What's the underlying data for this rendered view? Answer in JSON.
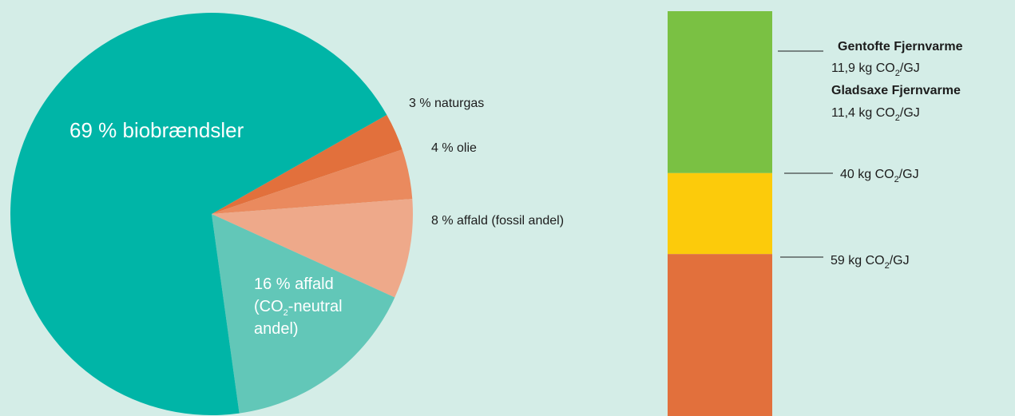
{
  "chart_data": [
    {
      "type": "pie",
      "slices": [
        {
          "label": "69 % biobrændsler",
          "value": 69,
          "color": "#00b5a7"
        },
        {
          "label": "3 % naturgas",
          "value": 3,
          "color": "#e2703c"
        },
        {
          "label": "4 % olie",
          "value": 4,
          "color": "#ea8a5e"
        },
        {
          "label": "8 % affald (fossil andel)",
          "value": 8,
          "color": "#eea98a"
        },
        {
          "label_parts": [
            "16 % affald",
            "(CO",
            "2",
            "-neutral",
            "andel)"
          ],
          "value": 16,
          "color": "#62c7b8"
        }
      ]
    },
    {
      "type": "bar",
      "stacked": true,
      "segments": [
        {
          "color": "#7ac143",
          "range_top": 0.0,
          "range_bottom": 0.4
        },
        {
          "color": "#fccb0b",
          "range_top": 0.4,
          "range_bottom": 0.6
        },
        {
          "color": "#e2703c",
          "range_top": 0.6,
          "range_bottom": 1.0
        }
      ],
      "annotations": [
        {
          "lines": [
            {
              "bold": true,
              "text": "Gentofte Fjernvarme"
            },
            {
              "bold": false,
              "pre": "11,9 kg CO",
              "sub": "2",
              "post": "/GJ"
            },
            {
              "bold": true,
              "text": "Gladsaxe Fjernvarme"
            },
            {
              "bold": false,
              "pre": "11,4 kg CO",
              "sub": "2",
              "post": "/GJ"
            }
          ]
        },
        {
          "lines": [
            {
              "bold": false,
              "pre": "40 kg CO",
              "sub": "2",
              "post": "/GJ"
            }
          ]
        },
        {
          "lines": [
            {
              "bold": false,
              "pre": "59 kg CO",
              "sub": "2",
              "post": "/GJ"
            }
          ]
        }
      ]
    }
  ]
}
